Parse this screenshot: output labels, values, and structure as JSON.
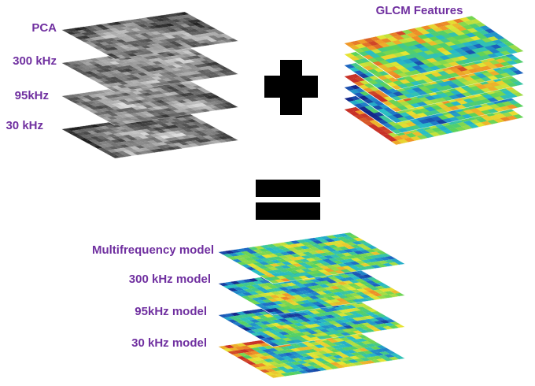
{
  "input_layers": {
    "labels": [
      "PCA",
      "300 kHz",
      "95kHz",
      "30 kHz"
    ]
  },
  "glcm": {
    "title": "GLCM Features"
  },
  "output_layers": {
    "labels": [
      "Multifrequency model",
      "300 kHz model",
      "95kHz model",
      "30 kHz model"
    ]
  }
}
